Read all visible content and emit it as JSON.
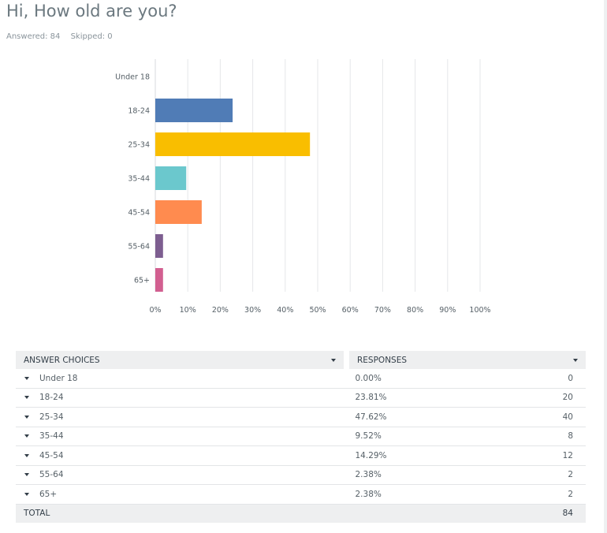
{
  "question": {
    "title": "Hi, How old are you?",
    "answered": "Answered: 84",
    "skipped": "Skipped: 0"
  },
  "chart_data": {
    "type": "bar",
    "orientation": "horizontal",
    "categories": [
      "Under 18",
      "18-24",
      "25-34",
      "35-44",
      "45-54",
      "55-64",
      "65+"
    ],
    "values": [
      0.0,
      23.81,
      47.62,
      9.52,
      14.29,
      2.38,
      2.38
    ],
    "colors": [
      "#507cb6",
      "#507cb6",
      "#f9be00",
      "#6bc8cd",
      "#ff8b4f",
      "#7d5e90",
      "#d25f90"
    ],
    "xlim": [
      0,
      100
    ],
    "xticks": [
      0,
      10,
      20,
      30,
      40,
      50,
      60,
      70,
      80,
      90,
      100
    ],
    "xtick_labels": [
      "0%",
      "10%",
      "20%",
      "30%",
      "40%",
      "50%",
      "60%",
      "70%",
      "80%",
      "90%",
      "100%"
    ],
    "grid": true,
    "gridline_color": "#e5e7e9",
    "axis_color": "#d7dadc"
  },
  "table": {
    "headers": {
      "choices": "ANSWER CHOICES",
      "responses": "RESPONSES"
    },
    "rows": [
      {
        "choice": "Under 18",
        "percent": "0.00%",
        "count": "0"
      },
      {
        "choice": "18-24",
        "percent": "23.81%",
        "count": "20"
      },
      {
        "choice": "25-34",
        "percent": "47.62%",
        "count": "40"
      },
      {
        "choice": "35-44",
        "percent": "9.52%",
        "count": "8"
      },
      {
        "choice": "45-54",
        "percent": "14.29%",
        "count": "12"
      },
      {
        "choice": "55-64",
        "percent": "2.38%",
        "count": "2"
      },
      {
        "choice": "65+",
        "percent": "2.38%",
        "count": "2"
      }
    ],
    "total": {
      "label": "TOTAL",
      "count": "84"
    }
  }
}
